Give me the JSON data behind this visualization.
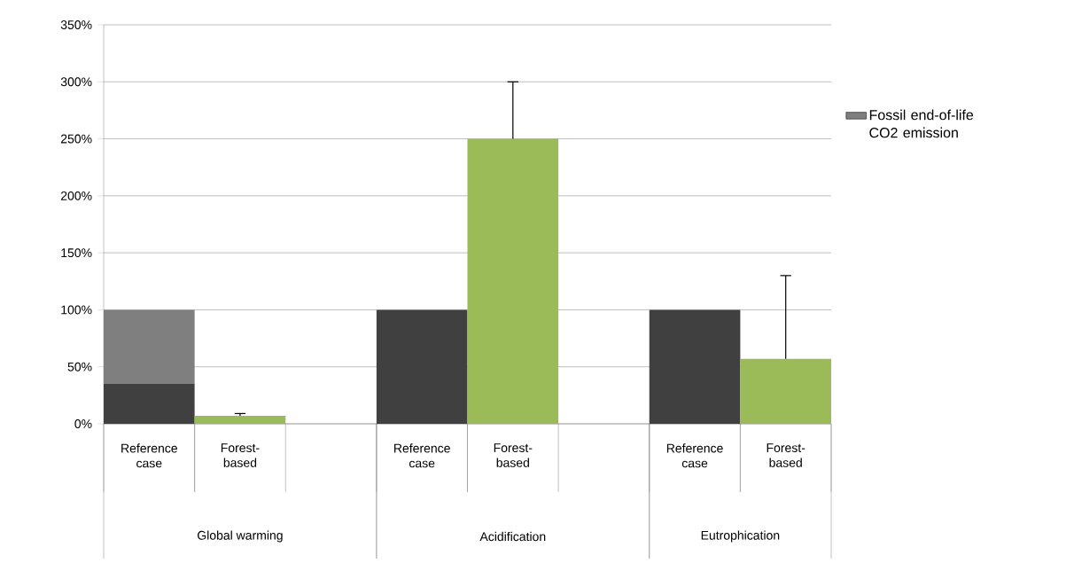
{
  "chart_data": {
    "type": "bar",
    "stacked": true,
    "categories": [
      "Reference case",
      "Forest-based",
      null,
      "Reference case",
      "Forest-based",
      null,
      "Reference case",
      "Forest-based"
    ],
    "series": [
      {
        "color": "#404040",
        "values": [
          35,
          null,
          null,
          100,
          null,
          null,
          100,
          null
        ]
      },
      {
        "name": "Fossil end-of-life CO2 emission",
        "color": "#7f7f7f",
        "values": [
          65,
          null,
          null,
          null,
          null,
          null,
          null,
          null
        ]
      },
      {
        "color": "#9bbb59",
        "values": [
          null,
          7,
          null,
          null,
          250,
          null,
          null,
          57
        ],
        "errors": [
          null,
          [
            7,
            9
          ],
          null,
          null,
          [
            250,
            300
          ],
          null,
          null,
          [
            57,
            130
          ]
        ]
      }
    ],
    "ylim": [
      0,
      350
    ],
    "yticks": [
      {
        "value": 0,
        "label": "0%"
      },
      {
        "value": 50,
        "label": "50%"
      },
      {
        "value": 100,
        "label": "100%"
      },
      {
        "value": 150,
        "label": "150%"
      },
      {
        "value": 200,
        "label": "200%"
      },
      {
        "value": 250,
        "label": "250%"
      },
      {
        "value": 300,
        "label": "300%"
      },
      {
        "value": 350,
        "label": "350%"
      }
    ],
    "grid": "y",
    "legend": "right",
    "annotations": [
      "Global warming",
      "Acidification",
      "Eutrophication"
    ]
  }
}
